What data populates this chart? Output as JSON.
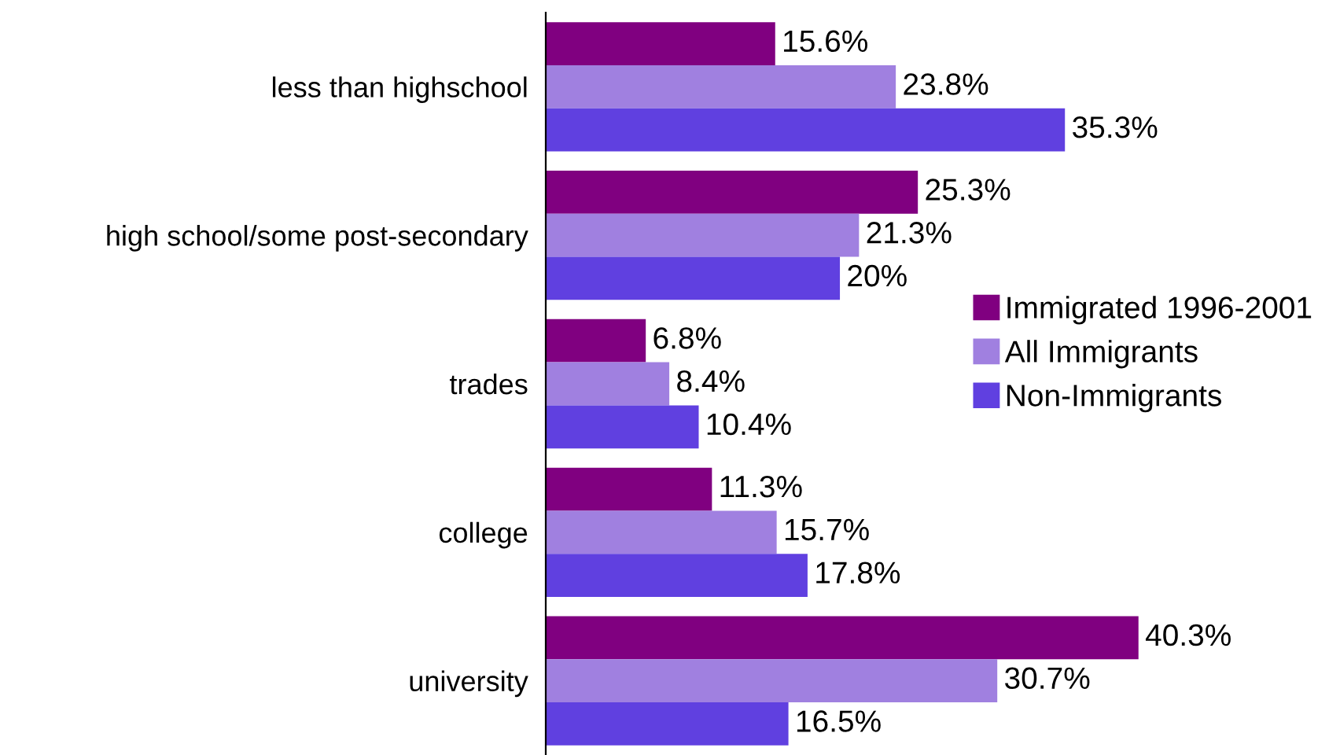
{
  "chart_data": {
    "type": "bar",
    "orientation": "horizontal",
    "categories": [
      "less than highschool",
      "high school/some post-secondary",
      "trades",
      "college",
      "university"
    ],
    "series": [
      {
        "name": "Immigrated 1996-2001",
        "color": "#800080",
        "values": [
          15.6,
          25.3,
          6.8,
          11.3,
          40.3
        ],
        "value_labels": [
          "15.6%",
          "25.3%",
          "6.8%",
          "11.3%",
          "40.3%"
        ]
      },
      {
        "name": "All Immigrants",
        "color": "#a080e0",
        "values": [
          23.8,
          21.3,
          8.4,
          15.7,
          30.7
        ],
        "value_labels": [
          "23.8%",
          "21.3%",
          "8.4%",
          "15.7%",
          "30.7%"
        ]
      },
      {
        "name": "Non-Immigrants",
        "color": "#6040e0",
        "values": [
          35.3,
          20,
          10.4,
          17.8,
          16.5
        ],
        "value_labels": [
          "35.3%",
          "20%",
          "10.4%",
          "17.8%",
          "16.5%"
        ]
      }
    ],
    "tick_labels": "y",
    "legend": "right",
    "grid": false
  }
}
